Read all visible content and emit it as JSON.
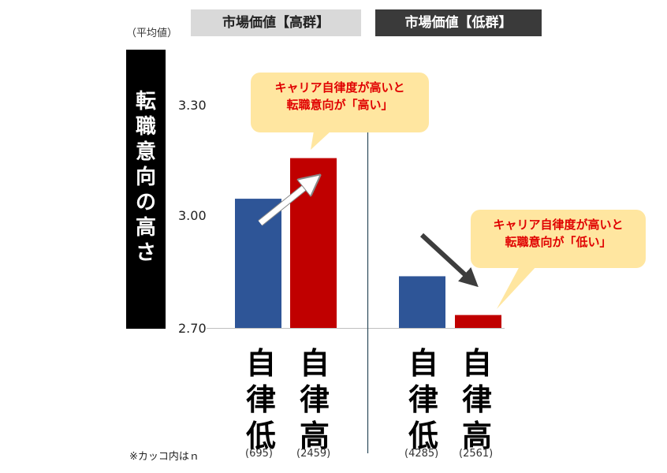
{
  "headers": {
    "high": "市場価値【高群】",
    "low": "市場価値【低群】"
  },
  "avg_note": "（平均値）",
  "ylabel": [
    "転",
    "職",
    "意",
    "向",
    "の",
    "高",
    "さ"
  ],
  "ticks": [
    "3.30",
    "3.00",
    "2.70"
  ],
  "callouts": {
    "high": [
      "キャリア自律度が高いと",
      "転職意向が「高い」"
    ],
    "low": [
      "キャリア自律度が高いと",
      "転職意向が「低い」"
    ]
  },
  "n_note": "※カッコ内はｎ",
  "colors": {
    "blue": "#2e5597",
    "red": "#c00000",
    "callout_bg": "#ffe6a0",
    "callout_text": "#e00000"
  },
  "chart_data": {
    "type": "bar",
    "ylim": [
      2.7,
      3.3
    ],
    "ylabel": "転職意向の高さ",
    "groups": [
      {
        "name": "市場価値【高群】",
        "bars": [
          {
            "label": [
              "自",
              "律",
              "低"
            ],
            "n": "(695)",
            "value": 3.05,
            "color": "blue"
          },
          {
            "label": [
              "自",
              "律",
              "高"
            ],
            "n": "(2459)",
            "value": 3.16,
            "color": "red"
          }
        ]
      },
      {
        "name": "市場価値【低群】",
        "bars": [
          {
            "label": [
              "自",
              "律",
              "低"
            ],
            "n": "(4285)",
            "value": 2.84,
            "color": "blue"
          },
          {
            "label": [
              "自",
              "律",
              "高"
            ],
            "n": "(2561)",
            "value": 2.735,
            "color": "red"
          }
        ]
      }
    ]
  }
}
